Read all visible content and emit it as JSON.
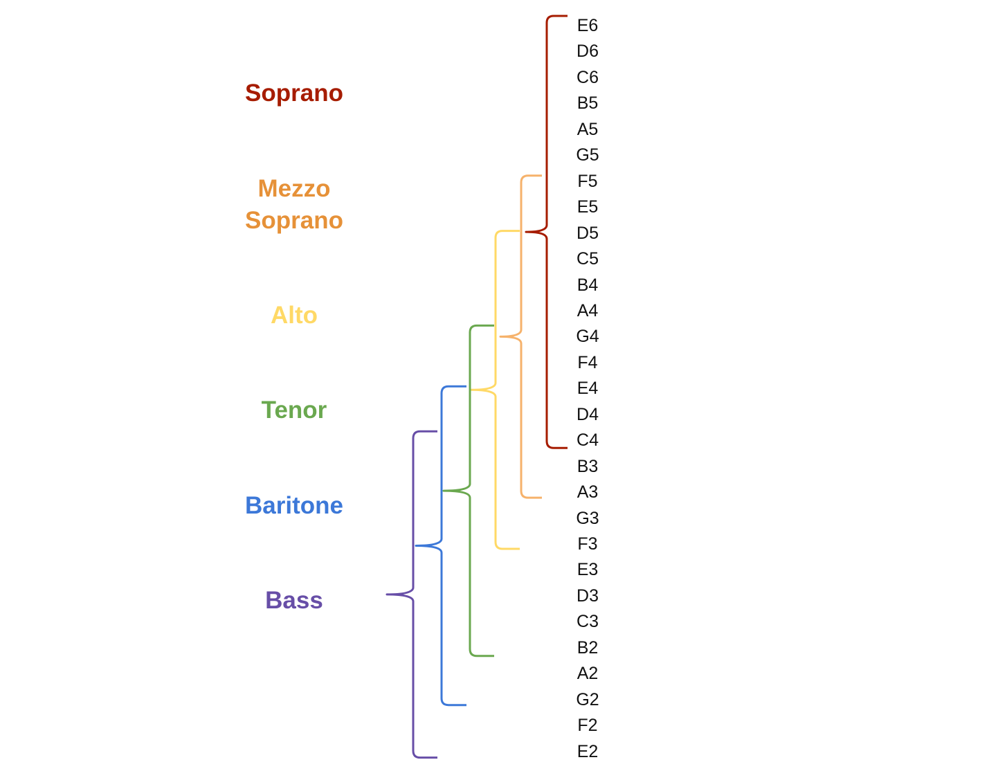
{
  "notes": [
    "E6",
    "D6",
    "C6",
    "B5",
    "A5",
    "G5",
    "F5",
    "E5",
    "D5",
    "C5",
    "B4",
    "A4",
    "G4",
    "F4",
    "E4",
    "D4",
    "C4",
    "B3",
    "A3",
    "G3",
    "F3",
    "E3",
    "D3",
    "C3",
    "B2",
    "A2",
    "G2",
    "F2",
    "E2"
  ],
  "voices": [
    {
      "name": "Soprano",
      "color": "#a61c00",
      "range_low": "C4",
      "range_high": "E6"
    },
    {
      "name": "Mezzo Soprano",
      "color": "#e69138",
      "bracket_color": "#f6b26b",
      "range_low": "A3",
      "range_high": "F5"
    },
    {
      "name": "Alto",
      "color": "#ffd966",
      "range_low": "F3",
      "range_high": "D5"
    },
    {
      "name": "Tenor",
      "color": "#6aa84f",
      "range_low": "B2",
      "range_high": "G4"
    },
    {
      "name": "Baritone",
      "color": "#3c78d8",
      "range_low": "G2",
      "range_high": "E4"
    },
    {
      "name": "Bass",
      "color": "#674ea7",
      "range_low": "E2",
      "range_high": "C4"
    }
  ]
}
